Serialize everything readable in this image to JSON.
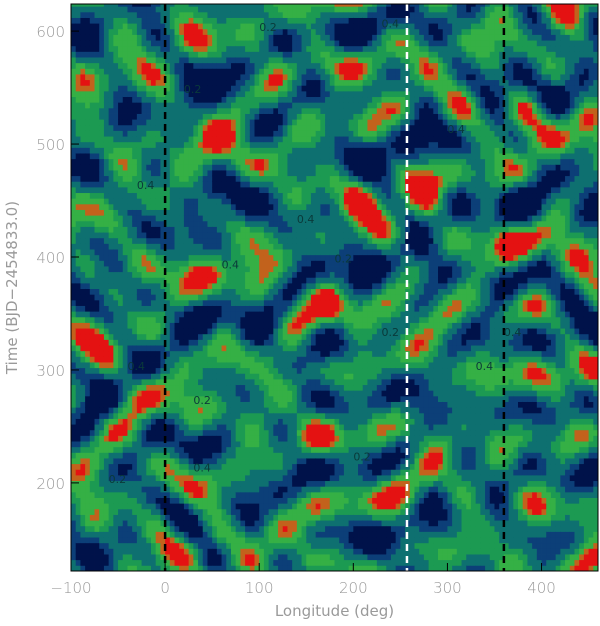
{
  "chart_data": {
    "type": "heatmap",
    "subtype": "filled-contour",
    "title": "",
    "xlabel": "Longitude (deg)",
    "ylabel": "Time (BJD−2454833.0)",
    "xlim": [
      -100,
      460
    ],
    "ylim": [
      122,
      624
    ],
    "xticks": [
      -100,
      0,
      100,
      200,
      300,
      400
    ],
    "xtick_labels": [
      "−100",
      "0",
      "100",
      "200",
      "300",
      "400"
    ],
    "yticks": [
      200,
      300,
      400,
      500,
      600
    ],
    "ytick_labels": [
      "200",
      "300",
      "400",
      "500",
      "600"
    ],
    "periodic_in_longitude": 360,
    "vertical_lines": [
      {
        "x": 0,
        "color": "#000000",
        "style": "dashed"
      },
      {
        "x": 257,
        "color": "#ffffff",
        "style": "dashed"
      },
      {
        "x": 360,
        "color": "#000000",
        "style": "dashed"
      }
    ],
    "contour_labels": [
      "0.2",
      "0.4"
    ],
    "level_colors": [
      "#00124a",
      "#0c3f78",
      "#0e7070",
      "#1c9a52",
      "#35b045",
      "#c2621c",
      "#e41212"
    ],
    "grid": false
  }
}
